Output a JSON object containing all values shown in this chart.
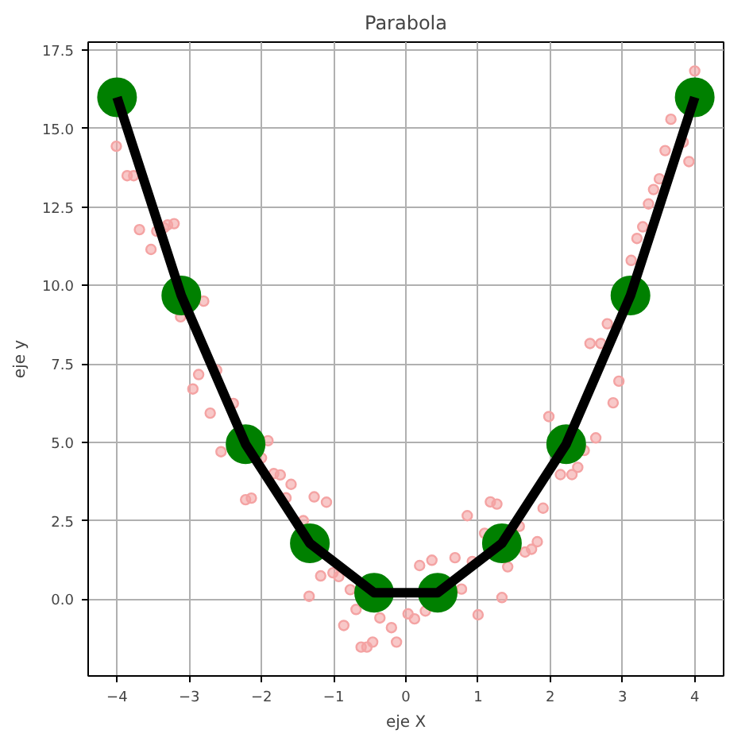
{
  "chart_data": {
    "type": "scatter",
    "title": "Parabola",
    "xlabel": "eje X",
    "ylabel": "eje y",
    "xlim": [
      -4.4,
      4.4
    ],
    "ylim": [
      -2.45,
      17.76
    ],
    "xticks": [
      -4,
      -3,
      -2,
      -1,
      0,
      1,
      2,
      3,
      4
    ],
    "yticks": [
      {
        "value": 0,
        "label": "0.0"
      },
      {
        "value": 2.5,
        "label": "2.5"
      },
      {
        "value": 5,
        "label": "5.0"
      },
      {
        "value": 7.5,
        "label": "7.5"
      },
      {
        "value": 10,
        "label": "10.0"
      },
      {
        "value": 12.5,
        "label": "12.5"
      },
      {
        "value": 15,
        "label": "15.0"
      },
      {
        "value": 17.5,
        "label": "17.5"
      }
    ],
    "grid": true,
    "series": [
      {
        "marker": "circle",
        "color": "#f4a3a3",
        "x": [
          -4.01,
          -3.86,
          -3.77,
          -3.69,
          -3.53,
          -3.45,
          -3.35,
          -3.3,
          -3.21,
          -3.12,
          -2.95,
          -2.87,
          -2.8,
          -2.71,
          -2.62,
          -2.56,
          -2.39,
          -2.22,
          -2.14,
          -2.0,
          -1.91,
          -1.83,
          -1.74,
          -1.66,
          -1.59,
          -1.42,
          -1.34,
          -1.27,
          -1.18,
          -1.1,
          -1.01,
          -0.93,
          -0.86,
          -0.77,
          -0.69,
          -0.62,
          -0.54,
          -0.46,
          -0.36,
          -0.2,
          -0.13,
          0.03,
          0.12,
          0.19,
          0.27,
          0.36,
          0.68,
          0.77,
          0.85,
          0.92,
          1.0,
          1.09,
          1.17,
          1.26,
          1.33,
          1.41,
          1.57,
          1.65,
          1.74,
          1.82,
          1.9,
          1.98,
          2.14,
          2.3,
          2.38,
          2.47,
          2.55,
          2.63,
          2.7,
          2.79,
          2.87,
          2.95,
          3.12,
          3.2,
          3.28,
          3.36,
          3.43,
          3.51,
          3.59,
          3.67,
          3.84,
          3.92,
          4.0
        ],
        "values": [
          14.44,
          13.5,
          13.5,
          11.78,
          11.15,
          11.73,
          11.84,
          11.93,
          11.97,
          9.0,
          6.7,
          7.16,
          9.5,
          5.93,
          7.3,
          4.7,
          6.24,
          3.17,
          3.22,
          4.5,
          5.05,
          4.0,
          3.96,
          3.23,
          3.66,
          2.5,
          0.09,
          3.26,
          0.74,
          3.09,
          0.84,
          0.72,
          -0.84,
          0.3,
          -0.33,
          -1.53,
          -1.53,
          -1.37,
          -0.6,
          -0.91,
          -1.37,
          -0.47,
          -0.63,
          1.07,
          -0.38,
          1.24,
          1.32,
          0.32,
          2.66,
          1.2,
          -0.5,
          2.1,
          3.1,
          3.03,
          0.05,
          1.03,
          2.32,
          1.5,
          1.59,
          1.83,
          2.9,
          5.82,
          3.97,
          3.97,
          4.2,
          4.74,
          8.15,
          5.14,
          8.15,
          8.78,
          6.26,
          6.95,
          10.8,
          11.5,
          11.87,
          12.6,
          13.06,
          13.4,
          14.3,
          15.3,
          14.57,
          13.95,
          16.84
        ]
      },
      {
        "marker": "circle",
        "color": "#008000",
        "x": [
          -4,
          -3.11,
          -2.22,
          -1.33,
          -0.44,
          0.44,
          1.33,
          2.22,
          3.11,
          4
        ],
        "values": [
          16,
          9.68,
          4.94,
          1.78,
          0.2,
          0.2,
          1.78,
          4.94,
          9.68,
          16
        ]
      },
      {
        "type": "line",
        "marker": "none",
        "line_style": "solid",
        "color": "#000000",
        "x": [
          -4,
          -3.11,
          -2.22,
          -1.33,
          -0.44,
          0.44,
          1.33,
          2.22,
          3.11,
          4
        ],
        "values": [
          16,
          9.68,
          4.94,
          1.78,
          0.2,
          0.2,
          1.78,
          4.94,
          9.68,
          16
        ]
      }
    ]
  }
}
